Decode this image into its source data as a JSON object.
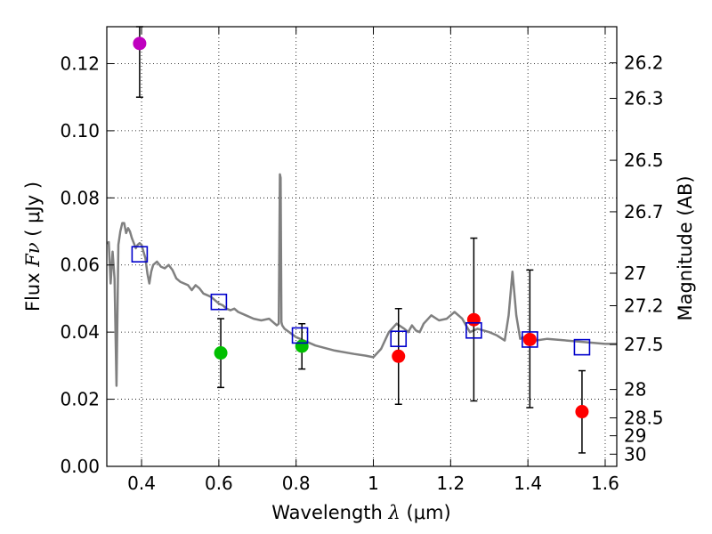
{
  "chart_data": {
    "type": "scatter",
    "xlabel": {
      "prefix": "Wavelength  ",
      "symbol": "λ",
      "unit": " (μm)"
    },
    "ylabel": {
      "prefix": "Flux  ",
      "symbol": "Fν",
      "unit": "  ( μJy )"
    },
    "y2label": "Magnitude (AB)",
    "xlim": [
      0.31,
      1.63
    ],
    "ylim": [
      0.0,
      0.131
    ],
    "grid": true,
    "x_ticks": [
      {
        "value": 0.4,
        "label": "0.4"
      },
      {
        "value": 0.6,
        "label": "0.6"
      },
      {
        "value": 0.8,
        "label": "0.8"
      },
      {
        "value": 1.0,
        "label": "1"
      },
      {
        "value": 1.2,
        "label": "1.2"
      },
      {
        "value": 1.4,
        "label": "1.4"
      },
      {
        "value": 1.6,
        "label": "1.6"
      }
    ],
    "y_ticks": [
      {
        "value": 0.0,
        "label": "0.00"
      },
      {
        "value": 0.02,
        "label": "0.02"
      },
      {
        "value": 0.04,
        "label": "0.04"
      },
      {
        "value": 0.06,
        "label": "0.06"
      },
      {
        "value": 0.08,
        "label": "0.08"
      },
      {
        "value": 0.1,
        "label": "0.10"
      },
      {
        "value": 0.12,
        "label": "0.12"
      }
    ],
    "mag_ticks": [
      {
        "mag": 26.2,
        "label": "26.2"
      },
      {
        "mag": 26.3,
        "label": "26.3"
      },
      {
        "mag": 26.5,
        "label": "26.5"
      },
      {
        "mag": 26.7,
        "label": "26.7"
      },
      {
        "mag": 27.0,
        "label": "27"
      },
      {
        "mag": 27.2,
        "label": "27.2"
      },
      {
        "mag": 27.5,
        "label": "27.5"
      },
      {
        "mag": 28.0,
        "label": "28"
      },
      {
        "mag": 28.5,
        "label": "28.5"
      },
      {
        "mag": 29.0,
        "label": "29"
      },
      {
        "mag": 30.0,
        "label": "30"
      }
    ],
    "model_spectrum": {
      "color": "#808080",
      "x": [
        0.31,
        0.315,
        0.32,
        0.325,
        0.33,
        0.335,
        0.34,
        0.345,
        0.35,
        0.355,
        0.36,
        0.365,
        0.37,
        0.375,
        0.38,
        0.385,
        0.39,
        0.395,
        0.4,
        0.405,
        0.41,
        0.415,
        0.42,
        0.425,
        0.43,
        0.44,
        0.45,
        0.46,
        0.47,
        0.48,
        0.49,
        0.5,
        0.51,
        0.52,
        0.53,
        0.54,
        0.55,
        0.56,
        0.57,
        0.58,
        0.59,
        0.6,
        0.61,
        0.62,
        0.63,
        0.64,
        0.65,
        0.67,
        0.69,
        0.71,
        0.73,
        0.75,
        0.755,
        0.758,
        0.76,
        0.762,
        0.764,
        0.77,
        0.8,
        0.85,
        0.9,
        0.95,
        0.98,
        1.0,
        1.02,
        1.04,
        1.06,
        1.08,
        1.09,
        1.1,
        1.11,
        1.12,
        1.13,
        1.15,
        1.17,
        1.19,
        1.21,
        1.23,
        1.25,
        1.27,
        1.3,
        1.32,
        1.34,
        1.35,
        1.36,
        1.37,
        1.38,
        1.39,
        1.4,
        1.42,
        1.45,
        1.5,
        1.55,
        1.6,
        1.63
      ],
      "y": [
        0.0665,
        0.0668,
        0.0545,
        0.064,
        0.056,
        0.024,
        0.066,
        0.07,
        0.0725,
        0.0725,
        0.0695,
        0.071,
        0.07,
        0.068,
        0.0665,
        0.065,
        0.066,
        0.0665,
        0.066,
        0.064,
        0.062,
        0.0575,
        0.0545,
        0.058,
        0.06,
        0.061,
        0.0595,
        0.059,
        0.06,
        0.0585,
        0.056,
        0.055,
        0.0545,
        0.054,
        0.0525,
        0.054,
        0.053,
        0.0515,
        0.051,
        0.0505,
        0.0495,
        0.0485,
        0.048,
        0.047,
        0.0465,
        0.047,
        0.046,
        0.045,
        0.044,
        0.0435,
        0.044,
        0.042,
        0.0425,
        0.087,
        0.086,
        0.043,
        0.042,
        0.041,
        0.0385,
        0.036,
        0.0345,
        0.0335,
        0.033,
        0.0325,
        0.035,
        0.04,
        0.0425,
        0.041,
        0.04,
        0.042,
        0.0405,
        0.04,
        0.0425,
        0.045,
        0.0435,
        0.044,
        0.046,
        0.044,
        0.04,
        0.041,
        0.04,
        0.039,
        0.0375,
        0.045,
        0.058,
        0.045,
        0.038,
        0.0385,
        0.038,
        0.0375,
        0.038,
        0.0375,
        0.037,
        0.0365,
        0.0365
      ]
    },
    "series": [
      {
        "name": "magenta",
        "marker": "circle",
        "color": "#bf00bf",
        "points": [
          {
            "x": 0.395,
            "y": 0.126,
            "err": [
              0.11,
              0.131
            ]
          }
        ]
      },
      {
        "name": "green",
        "marker": "circle",
        "color": "#00bf00",
        "points": [
          {
            "x": 0.605,
            "y": 0.0338,
            "err": [
              0.0235,
              0.044
            ]
          },
          {
            "x": 0.815,
            "y": 0.0358,
            "err": [
              0.029,
              0.0425
            ]
          }
        ]
      },
      {
        "name": "red",
        "marker": "circle",
        "color": "#ff0000",
        "points": [
          {
            "x": 1.065,
            "y": 0.0328,
            "err": [
              0.0185,
              0.047
            ]
          },
          {
            "x": 1.26,
            "y": 0.0437,
            "err": [
              0.0195,
              0.068
            ]
          },
          {
            "x": 1.405,
            "y": 0.0378,
            "err": [
              0.0175,
              0.0585
            ]
          },
          {
            "x": 1.54,
            "y": 0.0163,
            "err": [
              0.004,
              0.0285
            ]
          }
        ]
      },
      {
        "name": "model-photometry",
        "marker": "square-open",
        "color": "#0000cc",
        "points": [
          {
            "x": 0.395,
            "y": 0.0632
          },
          {
            "x": 0.6,
            "y": 0.049
          },
          {
            "x": 0.81,
            "y": 0.039
          },
          {
            "x": 1.065,
            "y": 0.038
          },
          {
            "x": 1.26,
            "y": 0.0405
          },
          {
            "x": 1.405,
            "y": 0.0378
          },
          {
            "x": 1.54,
            "y": 0.0355
          }
        ]
      }
    ]
  }
}
